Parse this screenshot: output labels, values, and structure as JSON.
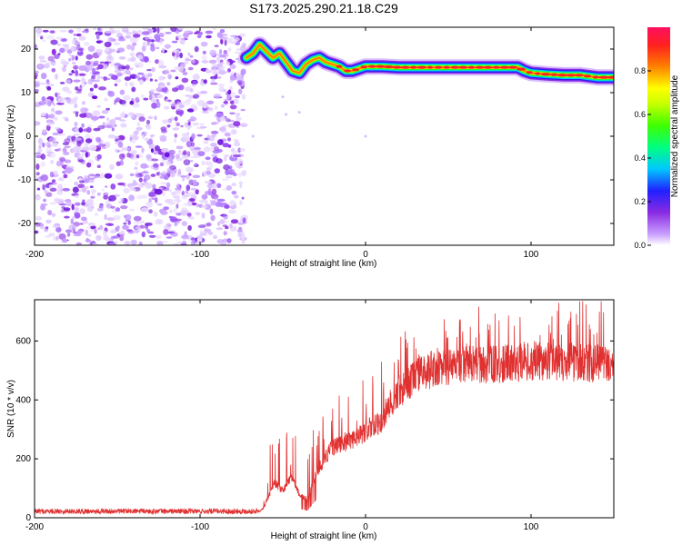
{
  "title": "S173.2025.290.21.18.C29",
  "colors": {
    "snr_line": "#e03030",
    "noise": "#8a2be2",
    "axis": "#000000"
  },
  "chart_data": [
    {
      "type": "heatmap",
      "xlabel": "Height of straight line (km)",
      "ylabel": "Frequency (Hz)",
      "xlim": [
        -200,
        150
      ],
      "ylim": [
        -25,
        25
      ],
      "xticks": [
        -200,
        -100,
        0,
        100
      ],
      "yticks": [
        -20,
        -10,
        0,
        10,
        20
      ],
      "xtick_labels": [
        "-200",
        "-100",
        "0",
        "100"
      ],
      "ytick_labels": [
        "-20",
        "-10",
        "0",
        "10",
        "20"
      ],
      "noise_region_x": [
        -200,
        -73
      ],
      "ridge": {
        "x": [
          -72,
          -68,
          -64,
          -60,
          -56,
          -52,
          -48,
          -44,
          -40,
          -36,
          -32,
          -28,
          -24,
          -20,
          -16,
          -12,
          -8,
          -4,
          0,
          10,
          20,
          40,
          60,
          80,
          92,
          96,
          100,
          110,
          120,
          130,
          140,
          150
        ],
        "frequency": [
          18,
          19,
          21,
          19.5,
          18,
          19,
          17,
          15,
          14.5,
          16.5,
          17.5,
          18,
          17,
          16.5,
          16,
          15,
          15,
          15.5,
          16,
          16,
          15.8,
          15.8,
          15.8,
          15.8,
          15.8,
          15,
          14.5,
          14.2,
          14,
          14,
          13.5,
          13.5
        ]
      },
      "colorbar": {
        "label": "Normalized spectral amplitude",
        "min": 0.0,
        "max": 1.0,
        "ticks": [
          0.0,
          0.2,
          0.4,
          0.6,
          0.8
        ],
        "tick_labels": [
          "0.0",
          "0.2",
          "0.4",
          "0.6",
          "0.8"
        ]
      }
    },
    {
      "type": "line",
      "xlabel": "Height of straight line (km)",
      "ylabel": "SNR (10 * v/v)",
      "xlim": [
        -200,
        150
      ],
      "ylim": [
        0,
        740
      ],
      "xticks": [
        -200,
        -100,
        0,
        100
      ],
      "yticks": [
        0,
        200,
        400,
        600
      ],
      "xtick_labels": [
        "-200",
        "-100",
        "0",
        "100"
      ],
      "ytick_labels": [
        "0",
        "200",
        "400",
        "600"
      ],
      "series": [
        {
          "name": "SNR",
          "envelope": {
            "x": [
              -200,
              -64,
              -62,
              -55,
              -50,
              -45,
              -40,
              -35,
              -30,
              -25,
              -20,
              -10,
              0,
              10,
              20,
              30,
              40,
              60,
              80,
              100,
              120,
              150
            ],
            "y": [
              22,
              22,
              30,
              120,
              90,
              140,
              80,
              60,
              150,
              200,
              240,
              260,
              290,
              330,
              420,
              480,
              500,
              520,
              520,
              530,
              530,
              520
            ]
          }
        }
      ]
    }
  ]
}
